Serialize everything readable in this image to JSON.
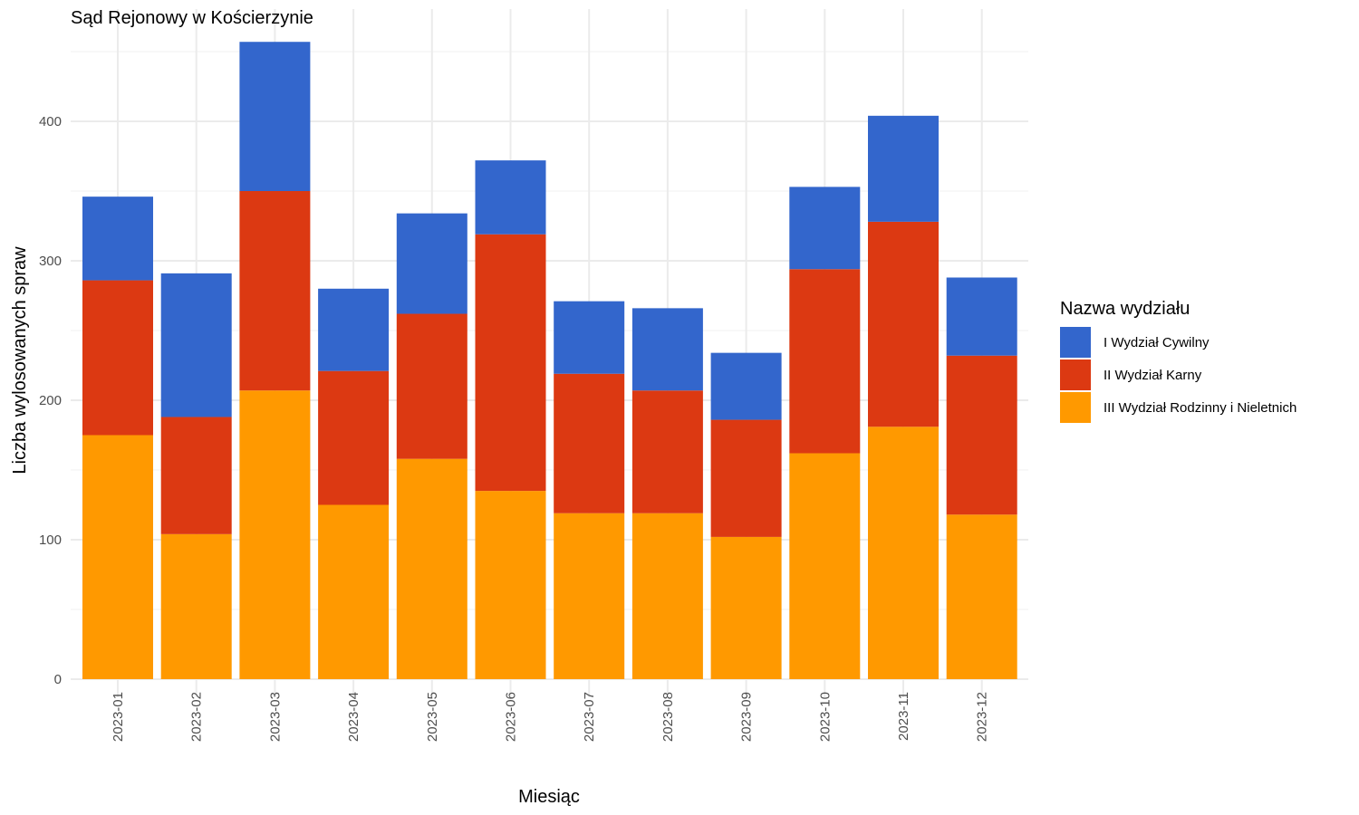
{
  "chart_data": {
    "type": "bar",
    "stacked": true,
    "title": "Sąd Rejonowy w Kościerzynie",
    "xlabel": "Miesiąc",
    "ylabel": "Liczba wylosowanych spraw",
    "ylim": [
      0,
      460
    ],
    "yticks": [
      0,
      100,
      200,
      300,
      400
    ],
    "grid": true,
    "legend_title": "Nazwa wydziału",
    "legend_position": "right",
    "categories": [
      "2023-01",
      "2023-02",
      "2023-03",
      "2023-04",
      "2023-05",
      "2023-06",
      "2023-07",
      "2023-08",
      "2023-09",
      "2023-10",
      "2023-11",
      "2023-12"
    ],
    "series": [
      {
        "name": "III Wydział Rodzinny i Nieletnich",
        "color": "#FF9900",
        "values": [
          175,
          104,
          207,
          125,
          158,
          135,
          119,
          119,
          102,
          162,
          181,
          118
        ]
      },
      {
        "name": "II Wydział Karny",
        "color": "#DC3912",
        "values": [
          111,
          84,
          143,
          96,
          104,
          184,
          100,
          88,
          84,
          132,
          147,
          114
        ]
      },
      {
        "name": "I Wydział Cywilny",
        "color": "#3366CC",
        "values": [
          60,
          103,
          107,
          59,
          72,
          53,
          52,
          59,
          48,
          59,
          76,
          56
        ]
      }
    ],
    "legend_order": [
      "I Wydział Cywilny",
      "II Wydział Karny",
      "III Wydział Rodzinny i Nieletnich"
    ]
  }
}
